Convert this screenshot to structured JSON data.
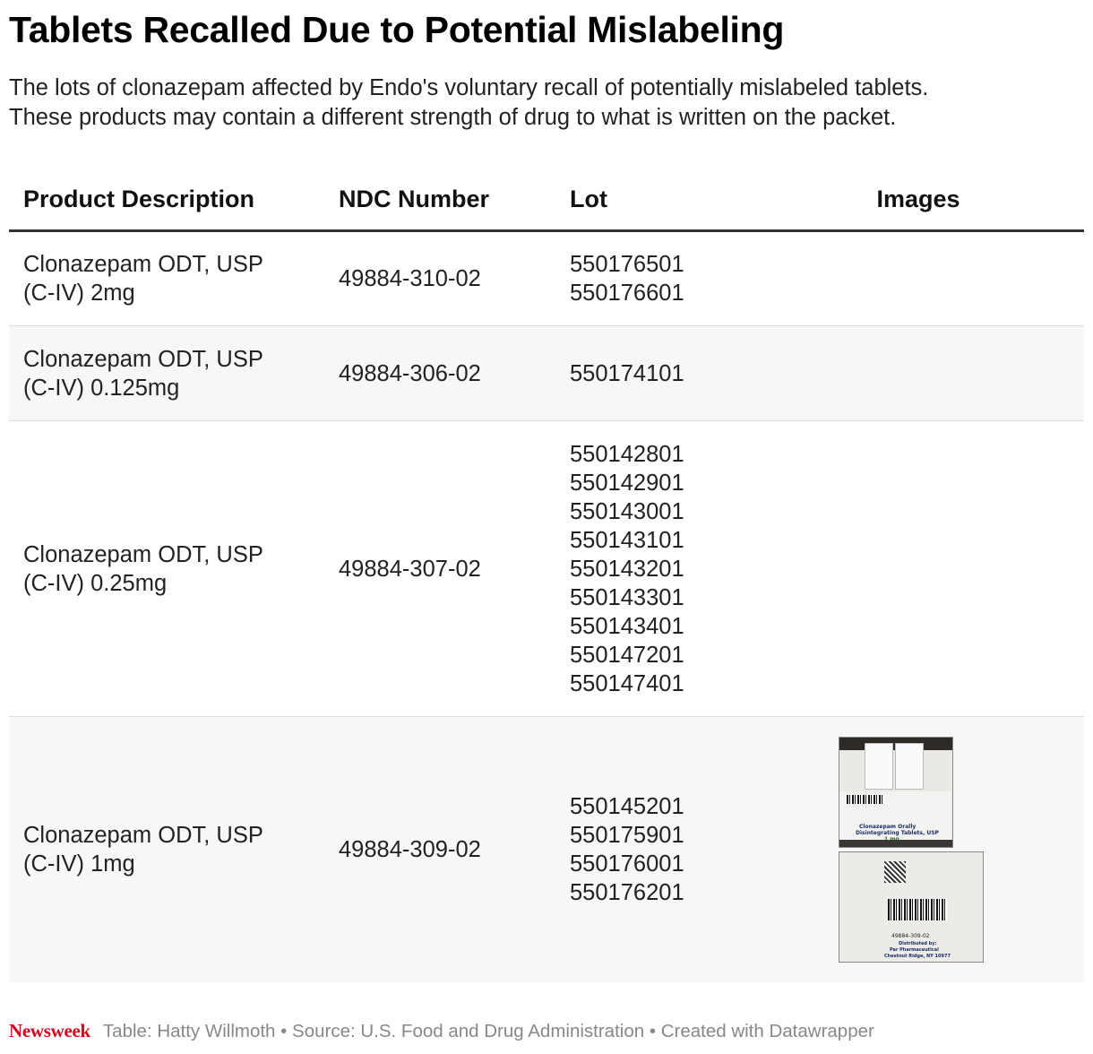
{
  "title": "Tablets Recalled Due to Potential Mislabeling",
  "subtitle": [
    "The lots of clonazepam affected by Endo's voluntary recall of potentially mislabeled tablets.",
    "These products may contain a different strength of drug to what is written on the packet."
  ],
  "table": {
    "headers": [
      "Product Description",
      "NDC Number",
      "Lot",
      "Images"
    ],
    "rows": [
      {
        "product_line1": "Clonazepam ODT, USP",
        "product_line2": "(C-IV) 2mg",
        "ndc": "49884-310-02",
        "lots": [
          "550176501",
          "550176601"
        ]
      },
      {
        "product_line1": "Clonazepam ODT, USP",
        "product_line2": "(C-IV) 0.125mg",
        "ndc": "49884-306-02",
        "lots": [
          "550174101"
        ]
      },
      {
        "product_line1": "Clonazepam ODT, USP",
        "product_line2": "(C-IV) 0.25mg",
        "ndc": "49884-307-02",
        "lots": [
          "550142801",
          "550142901",
          "550143001",
          "550143101",
          "550143201",
          "550143301",
          "550143401",
          "550147201",
          "550147401"
        ]
      },
      {
        "product_line1": "Clonazepam ODT, USP",
        "product_line2": "(C-IV) 1mg",
        "ndc": "49884-309-02",
        "lots": [
          "550145201",
          "550175901",
          "550176001",
          "550176201"
        ],
        "images": {
          "photo1_text": [
            "Clonazepam Orally",
            "Disintegrating Tablets, USP",
            "1 mg"
          ],
          "photo2_text": [
            "49884-309-02",
            "Distributed by:",
            "Par Pharmaceutical",
            "Chestnut Ridge, NY 10977"
          ]
        }
      }
    ]
  },
  "footer": {
    "logo": "Newsweek",
    "credit": "Table: Hatty Willmoth • Source: U.S. Food and Drug Administration • Created with Datawrapper"
  },
  "colors": {
    "logo": "#d8001a",
    "alt_row": "#f7f7f7",
    "footer_text": "#888888"
  }
}
